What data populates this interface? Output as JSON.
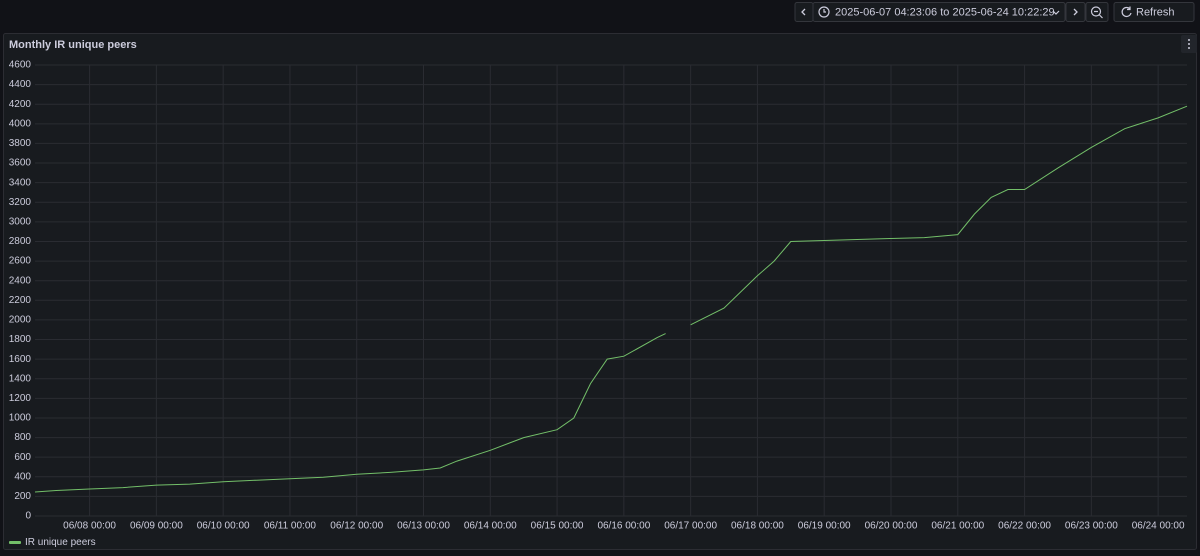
{
  "time_picker": {
    "separator": "to",
    "refresh": "Refresh"
  },
  "chart_data": {
    "type": "line",
    "title": "Monthly IR unique peers",
    "x": [
      "2025-06-07 04:23",
      "2025-06-07 12:00",
      "2025-06-08 00:00",
      "2025-06-08 12:00",
      "2025-06-09 00:00",
      "2025-06-09 12:00",
      "2025-06-10 00:00",
      "2025-06-10 12:00",
      "2025-06-11 00:00",
      "2025-06-11 12:00",
      "2025-06-12 00:00",
      "2025-06-12 12:00",
      "2025-06-13 00:00",
      "2025-06-13 06:00",
      "2025-06-13 12:00",
      "2025-06-14 00:00",
      "2025-06-14 12:00",
      "2025-06-15 00:00",
      "2025-06-15 06:00",
      "2025-06-15 12:00",
      "2025-06-15 18:00",
      "2025-06-16 00:00",
      "2025-06-16 12:00",
      "2025-06-16 15:00",
      "2025-06-16 18:00",
      "2025-06-17 00:00",
      "2025-06-17 12:00",
      "2025-06-18 00:00",
      "2025-06-18 06:00",
      "2025-06-18 12:00",
      "2025-06-19 00:00",
      "2025-06-20 00:00",
      "2025-06-20 12:00",
      "2025-06-21 00:00",
      "2025-06-21 06:00",
      "2025-06-21 12:00",
      "2025-06-21 18:00",
      "2025-06-22 00:00",
      "2025-06-22 12:00",
      "2025-06-23 00:00",
      "2025-06-23 12:00",
      "2025-06-24 00:00",
      "2025-06-24 10:22"
    ],
    "series": [
      {
        "name": "IR unique peers",
        "color": "#73bf69",
        "values": [
          245,
          260,
          275,
          290,
          315,
          325,
          350,
          365,
          380,
          395,
          425,
          445,
          470,
          490,
          560,
          670,
          800,
          880,
          1000,
          1350,
          1600,
          1630,
          1820,
          1860,
          null,
          1950,
          2120,
          2450,
          2600,
          2800,
          2810,
          2830,
          2840,
          2870,
          3080,
          3250,
          3330,
          3330,
          3550,
          3760,
          3950,
          4060,
          4180
        ]
      }
    ],
    "xlim": [
      "2025-06-07 04:23:06",
      "2025-06-24 10:22:29"
    ],
    "xticks": [
      {
        "value": "2025-06-08 00:00",
        "label": "06/08 00:00"
      },
      {
        "value": "2025-06-09 00:00",
        "label": "06/09 00:00"
      },
      {
        "value": "2025-06-10 00:00",
        "label": "06/10 00:00"
      },
      {
        "value": "2025-06-11 00:00",
        "label": "06/11 00:00"
      },
      {
        "value": "2025-06-12 00:00",
        "label": "06/12 00:00"
      },
      {
        "value": "2025-06-13 00:00",
        "label": "06/13 00:00"
      },
      {
        "value": "2025-06-14 00:00",
        "label": "06/14 00:00"
      },
      {
        "value": "2025-06-15 00:00",
        "label": "06/15 00:00"
      },
      {
        "value": "2025-06-16 00:00",
        "label": "06/16 00:00"
      },
      {
        "value": "2025-06-17 00:00",
        "label": "06/17 00:00"
      },
      {
        "value": "2025-06-18 00:00",
        "label": "06/18 00:00"
      },
      {
        "value": "2025-06-19 00:00",
        "label": "06/19 00:00"
      },
      {
        "value": "2025-06-20 00:00",
        "label": "06/20 00:00"
      },
      {
        "value": "2025-06-21 00:00",
        "label": "06/21 00:00"
      },
      {
        "value": "2025-06-22 00:00",
        "label": "06/22 00:00"
      },
      {
        "value": "2025-06-23 00:00",
        "label": "06/23 00:00"
      },
      {
        "value": "2025-06-24 00:00",
        "label": "06/24 00:00"
      }
    ],
    "ylim": [
      0,
      4600
    ],
    "yticks": [
      0,
      200,
      400,
      600,
      800,
      1000,
      1200,
      1400,
      1600,
      1800,
      2000,
      2200,
      2400,
      2600,
      2800,
      3000,
      3200,
      3400,
      3600,
      3800,
      4000,
      4200,
      4400,
      4600
    ],
    "grid": true
  }
}
